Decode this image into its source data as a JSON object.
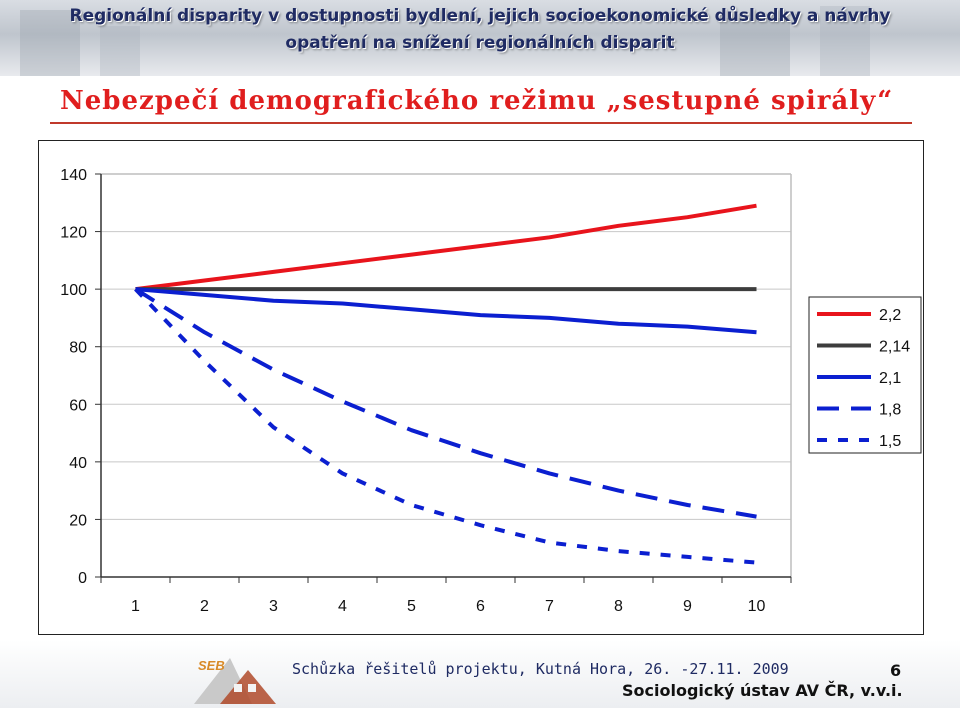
{
  "header": {
    "title_line1": "Regionální disparity v dostupnosti bydlení, jejich socioekonomické důsledky a návrhy",
    "title_line2": "opatření na snížení regionálních disparit"
  },
  "subtitle": "Nebezpečí demografického režimu „sestupné spirály“",
  "chart_data": {
    "type": "line",
    "x": [
      1,
      2,
      3,
      4,
      5,
      6,
      7,
      8,
      9,
      10
    ],
    "ylim": [
      0,
      140
    ],
    "yticks": [
      "0",
      "20",
      "40",
      "60",
      "80",
      "100",
      "120",
      "140"
    ],
    "xticks": [
      "1",
      "2",
      "3",
      "4",
      "5",
      "6",
      "7",
      "8",
      "9",
      "10"
    ],
    "grid": "horizontal major lines",
    "legend_position": "right",
    "series": [
      {
        "name": "2,2",
        "color": "#e8141c",
        "style": "solid",
        "values": [
          100,
          103,
          106,
          109,
          112,
          115,
          118,
          122,
          125,
          129
        ]
      },
      {
        "name": "2,14",
        "color": "#3d3d3d",
        "style": "solid",
        "values": [
          100,
          100,
          100,
          100,
          100,
          100,
          100,
          100,
          100,
          100
        ]
      },
      {
        "name": "2,1",
        "color": "#0b1fd0",
        "style": "solid",
        "values": [
          100,
          98,
          96,
          95,
          93,
          91,
          90,
          88,
          87,
          85
        ]
      },
      {
        "name": "1,8",
        "color": "#0b1fd0",
        "style": "dashed",
        "values": [
          100,
          85,
          72,
          61,
          51,
          43,
          36,
          30,
          25,
          21
        ]
      },
      {
        "name": "1,5",
        "color": "#0b1fd0",
        "style": "dotted",
        "values": [
          100,
          75,
          52,
          36,
          25,
          18,
          12,
          9,
          7,
          5
        ]
      }
    ]
  },
  "footer": {
    "meeting": "Schůzka řešitelů projektu, Kutná Hora, 26. -27.11. 2009",
    "institute": "Sociologický ústav AV ČR, v.v.i.",
    "page": "6",
    "logo_text": "SEB"
  }
}
